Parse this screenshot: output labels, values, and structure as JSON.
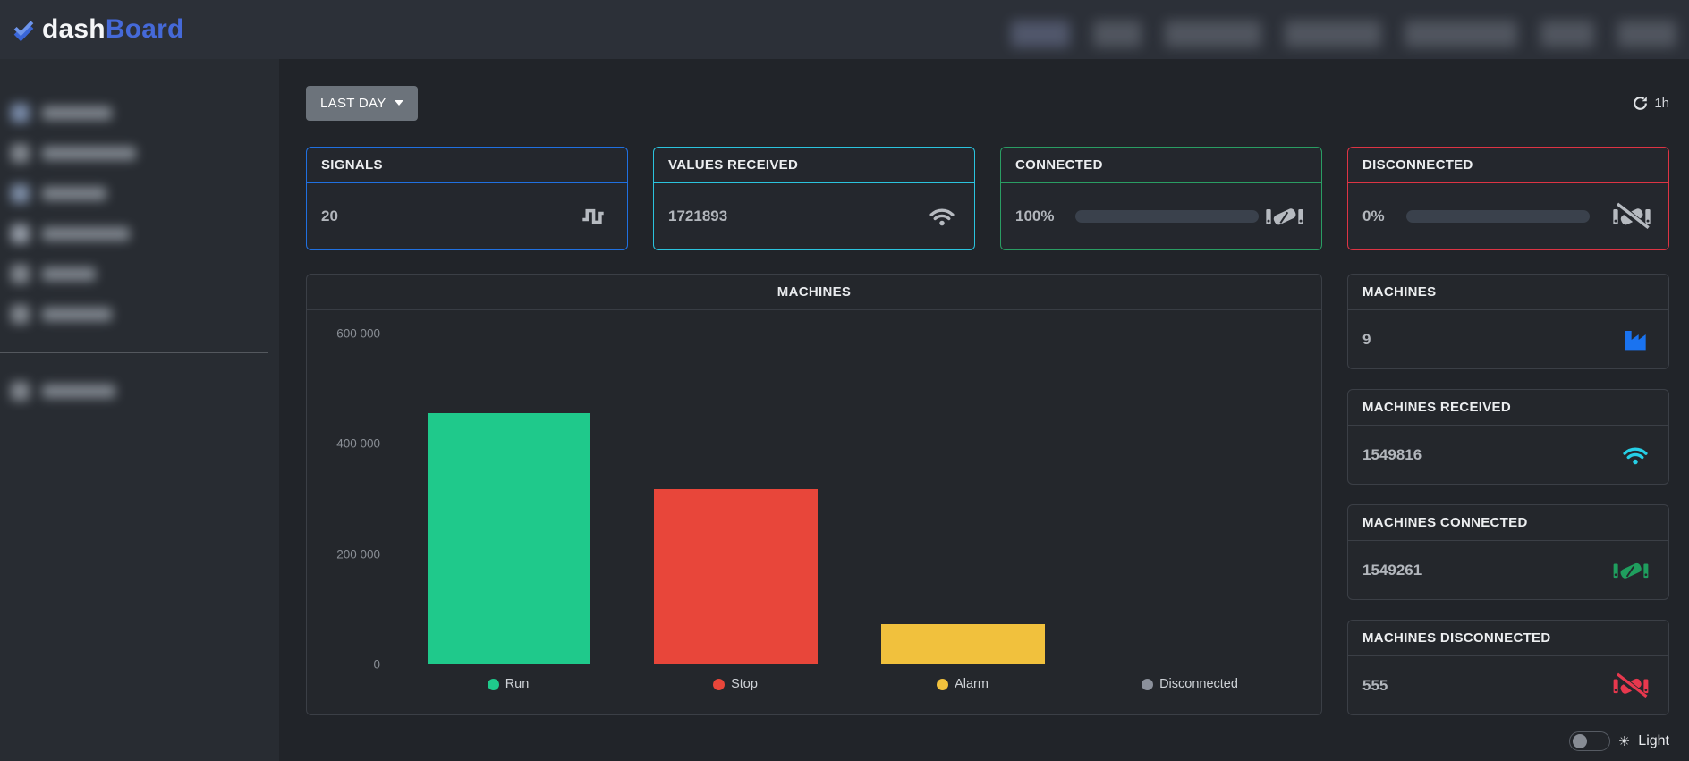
{
  "brand": {
    "name_prefix": "dash",
    "name_suffix": "Board"
  },
  "toolbar": {
    "period_button": "LAST DAY",
    "refresh_interval": "1h"
  },
  "stat_cards": [
    {
      "title": "SIGNALS",
      "value": "20",
      "icon": "wave-square-icon",
      "accent": "#2070e0"
    },
    {
      "title": "VALUES RECEIVED",
      "value": "1721893",
      "icon": "wifi-icon",
      "accent": "#2bc3dd"
    },
    {
      "title": "CONNECTED",
      "value": "100%",
      "progress": 100,
      "icon": "handshake-icon",
      "accent": "#2a9d63",
      "bar_color": "#1d9e60"
    },
    {
      "title": "DISCONNECTED",
      "value": "0%",
      "progress": 0,
      "icon": "handshake-slash-icon",
      "accent": "#dd3444",
      "bar_color": "#1d9e60"
    }
  ],
  "chart_data": {
    "type": "bar",
    "title": "MACHINES",
    "categories": [
      "Run",
      "Stop",
      "Alarm",
      "Disconnected"
    ],
    "values": [
      455000,
      317000,
      72000,
      0
    ],
    "colors": [
      "#1fc98b",
      "#e8463a",
      "#f1c13d",
      "#8b909b"
    ],
    "xlabel": "",
    "ylabel": "",
    "ylim": [
      0,
      600000
    ],
    "ytick_labels": [
      "600 000",
      "400 000",
      "200 000",
      "0"
    ],
    "legend_position": "bottom",
    "grid": false
  },
  "summary_cards": [
    {
      "title": "MACHINES",
      "value": "9",
      "icon": "factory-icon",
      "icon_color": "#1a73f0"
    },
    {
      "title": "MACHINES RECEIVED",
      "value": "1549816",
      "icon": "wifi-icon",
      "icon_color": "#26cfe6"
    },
    {
      "title": "MACHINES CONNECTED",
      "value": "1549261",
      "icon": "handshake-icon",
      "icon_color": "#1f9e5e"
    },
    {
      "title": "MACHINES DISCONNECTED",
      "value": "555",
      "icon": "handshake-slash-icon",
      "icon_color": "#e8384e"
    }
  ],
  "footer": {
    "theme_toggle_label": "Light"
  }
}
